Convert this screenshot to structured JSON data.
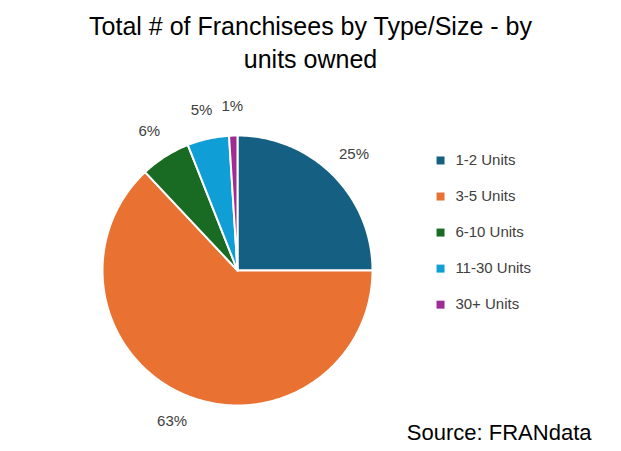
{
  "chart_data": {
    "type": "pie",
    "title": "Total # of Franchisees by Type/Size - by units owned",
    "source": "Source: FRANdata",
    "categories": [
      "1-2 Units",
      "3-5 Units",
      "6-10 Units",
      "11-30 Units",
      "30+ Units"
    ],
    "values": [
      25,
      63,
      6,
      5,
      1
    ],
    "value_labels": [
      "25%",
      "63%",
      "6%",
      "5%",
      "1%"
    ],
    "colors": [
      "#156082",
      "#e97132",
      "#196b24",
      "#0f9ed5",
      "#a02b93"
    ],
    "data_labels": true,
    "legend": "right"
  }
}
